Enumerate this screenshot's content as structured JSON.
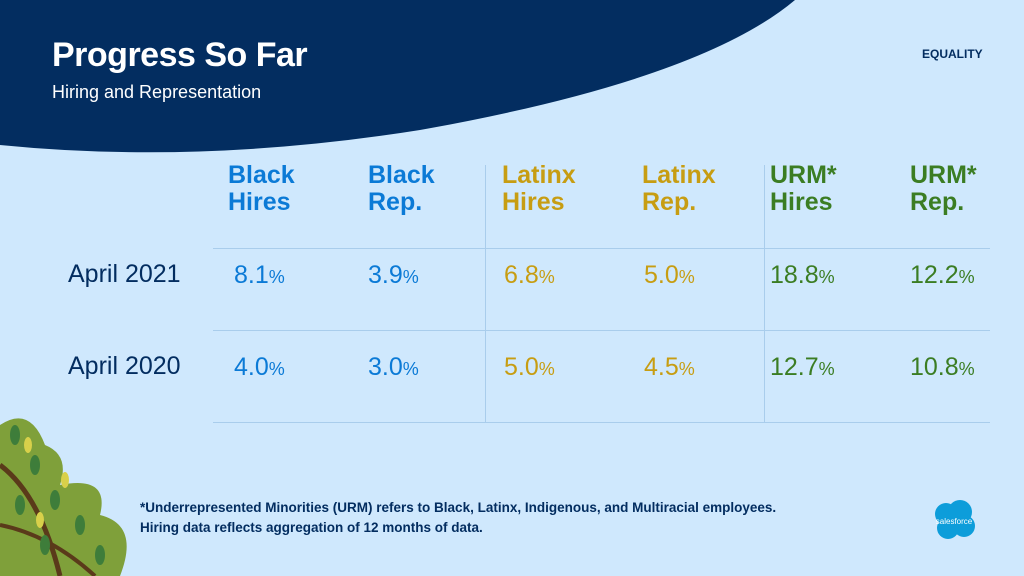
{
  "header": {
    "title": "Progress So Far",
    "subtitle": "Hiring and Representation",
    "tag": "EQUALITY"
  },
  "colors": {
    "navy": "#032d60",
    "blue": "#0b7ad6",
    "gold": "#c79d12",
    "green": "#3b7d23",
    "background": "#cfe8fd"
  },
  "table": {
    "columns": [
      {
        "line1": "Black",
        "line2": "Hires",
        "color": "blue"
      },
      {
        "line1": "Black",
        "line2": "Rep.",
        "color": "blue"
      },
      {
        "line1": "Latinx",
        "line2": "Hires",
        "color": "gold"
      },
      {
        "line1": "Latinx",
        "line2": "Rep.",
        "color": "gold"
      },
      {
        "line1": "URM*",
        "line2": "Hires",
        "color": "green"
      },
      {
        "line1": "URM*",
        "line2": "Rep.",
        "color": "green"
      }
    ],
    "rows": [
      {
        "label": "April 2021",
        "values": [
          "8.1",
          "3.9",
          "6.8",
          "5.0",
          "18.8",
          "12.2"
        ]
      },
      {
        "label": "April 2020",
        "values": [
          "4.0",
          "3.0",
          "5.0",
          "4.5",
          "12.7",
          "10.8"
        ]
      }
    ],
    "unit": "%"
  },
  "footnote": {
    "line1": "*Underrepresented Minorities (URM) refers to Black, Latinx, Indigenous, and Multiracial employees.",
    "line2": "Hiring data reflects aggregation of 12 months of data."
  },
  "logo": {
    "text": "salesforce"
  }
}
